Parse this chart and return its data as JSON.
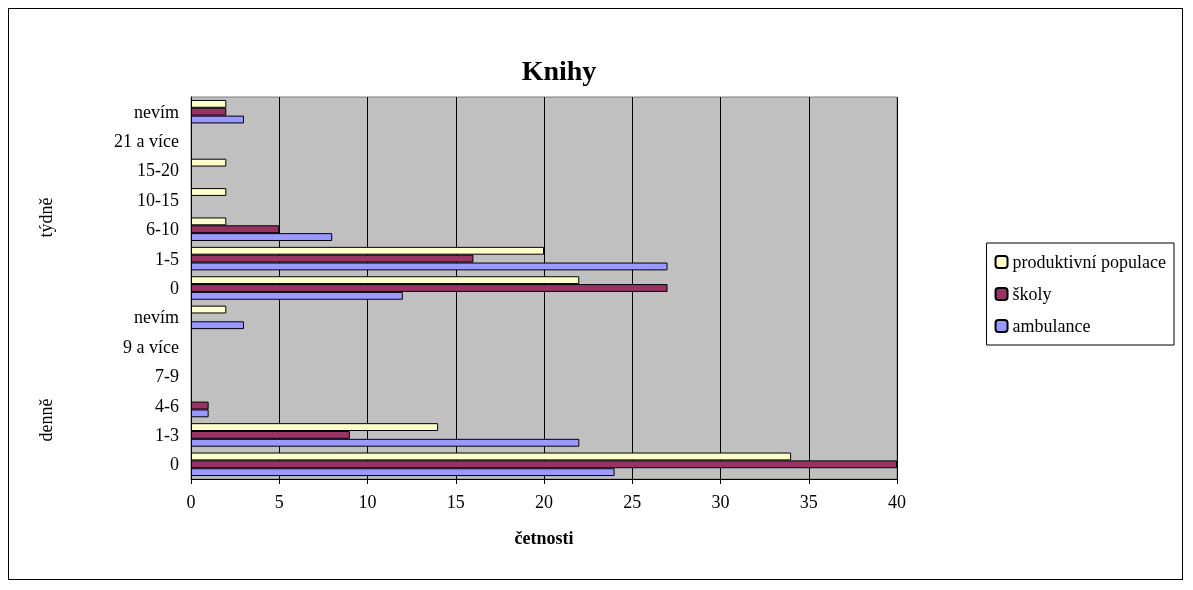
{
  "chart_data": {
    "type": "bar",
    "orientation": "horizontal",
    "title": "Knihy",
    "xlabel": "četnosti",
    "categories": [
      "nevím",
      "21 a více",
      "15-20",
      "10-15",
      "6-10",
      "1-5",
      "0",
      "nevím",
      "9 a více",
      "7-9",
      "4-6",
      "1-3",
      "0"
    ],
    "series": [
      {
        "name": "produktivní populace",
        "color": "#ffffcc",
        "values": [
          2,
          0,
          2,
          2,
          2,
          20,
          22,
          2,
          0,
          0,
          0,
          14,
          34
        ]
      },
      {
        "name": "školy",
        "color": "#993366",
        "values": [
          2,
          0,
          0,
          0,
          5,
          16,
          27,
          0,
          0,
          0,
          1,
          9,
          40
        ]
      },
      {
        "name": "ambulance",
        "color": "#9999ff",
        "values": [
          3,
          0,
          0,
          0,
          8,
          27,
          12,
          3,
          0,
          0,
          1,
          22,
          24
        ]
      }
    ],
    "annotations": [
      "týdně",
      "denně"
    ],
    "xlim": [
      0,
      40
    ],
    "xticks": [
      0,
      5,
      10,
      15,
      20,
      25,
      30,
      35,
      40
    ],
    "grid": "x",
    "legend": "right"
  }
}
